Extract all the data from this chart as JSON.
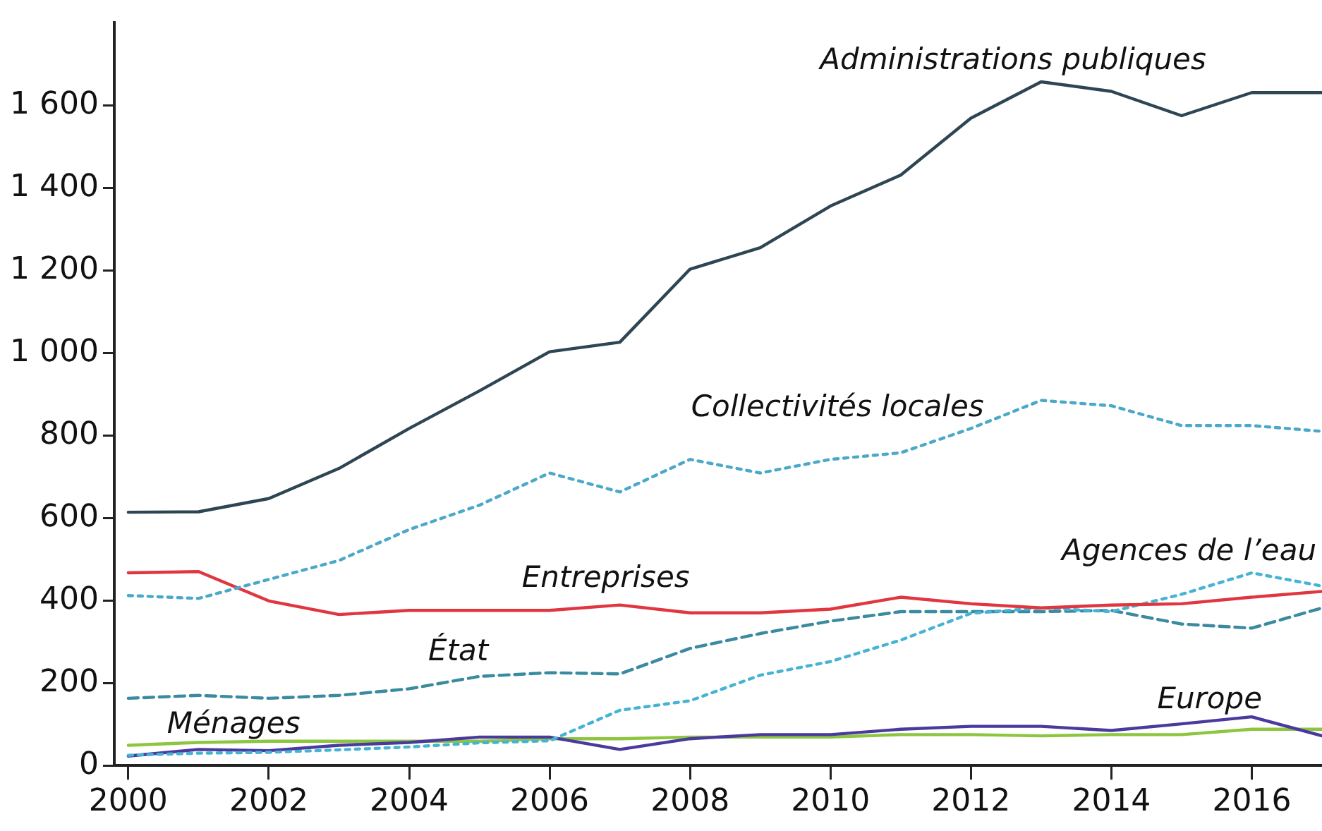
{
  "chart_data": {
    "type": "line",
    "x": [
      2000,
      2001,
      2002,
      2003,
      2004,
      2005,
      2006,
      2007,
      2008,
      2009,
      2010,
      2011,
      2012,
      2013,
      2014,
      2015,
      2016,
      2017
    ],
    "series": [
      {
        "name": "Administrations publiques",
        "color": "#2e4553",
        "line_style": "solid",
        "values": [
          614,
          615,
          647,
          720,
          817,
          908,
          1003,
          1026,
          1203,
          1255,
          1356,
          1431,
          1569,
          1657,
          1634,
          1575,
          1631,
          1631
        ]
      },
      {
        "name": "Collectivités locales",
        "color": "#4aa8c8",
        "line_style": "dotted",
        "values": [
          412,
          405,
          451,
          497,
          572,
          631,
          709,
          663,
          742,
          709,
          742,
          758,
          817,
          885,
          872,
          824,
          824,
          810
        ]
      },
      {
        "name": "Entreprises",
        "color": "#e0363f",
        "line_style": "solid",
        "values": [
          467,
          470,
          399,
          366,
          376,
          376,
          376,
          389,
          370,
          370,
          379,
          408,
          392,
          382,
          389,
          392,
          408,
          422
        ]
      },
      {
        "name": "Agences de l’eau",
        "color": "#45b3d3",
        "line_style": "dotted",
        "values": [
          25,
          30,
          32,
          38,
          45,
          55,
          60,
          134,
          157,
          219,
          252,
          304,
          369,
          382,
          373,
          415,
          467,
          435
        ]
      },
      {
        "name": "État",
        "color": "#3a8aa0",
        "line_style": "dashed",
        "values": [
          163,
          170,
          163,
          170,
          186,
          216,
          225,
          222,
          284,
          320,
          350,
          373,
          373,
          373,
          376,
          343,
          333,
          382
        ]
      },
      {
        "name": "Europe",
        "color": "#4a3a9e",
        "line_style": "solid",
        "values": [
          23,
          39,
          36,
          49,
          56,
          69,
          69,
          39,
          65,
          75,
          75,
          88,
          95,
          95,
          85,
          101,
          118,
          72
        ]
      },
      {
        "name": "Ménages",
        "color": "#8cc63f",
        "line_style": "solid",
        "values": [
          49,
          56,
          59,
          59,
          59,
          59,
          65,
          65,
          69,
          69,
          69,
          75,
          75,
          72,
          75,
          75,
          88,
          88
        ]
      }
    ],
    "xlim": [
      1999.8,
      2017
    ],
    "xticks": [
      2000,
      2002,
      2004,
      2006,
      2008,
      2010,
      2012,
      2014,
      2016
    ],
    "ylim": [
      0,
      1800
    ],
    "yticks": [
      0,
      200,
      400,
      600,
      800,
      {
        "value": 1000,
        "label": "1 000"
      },
      {
        "value": 1200,
        "label": "1 200"
      },
      {
        "value": 1400,
        "label": "1 400"
      },
      {
        "value": 1600,
        "label": "1 600"
      }
    ],
    "grid": false,
    "legend": false
  }
}
